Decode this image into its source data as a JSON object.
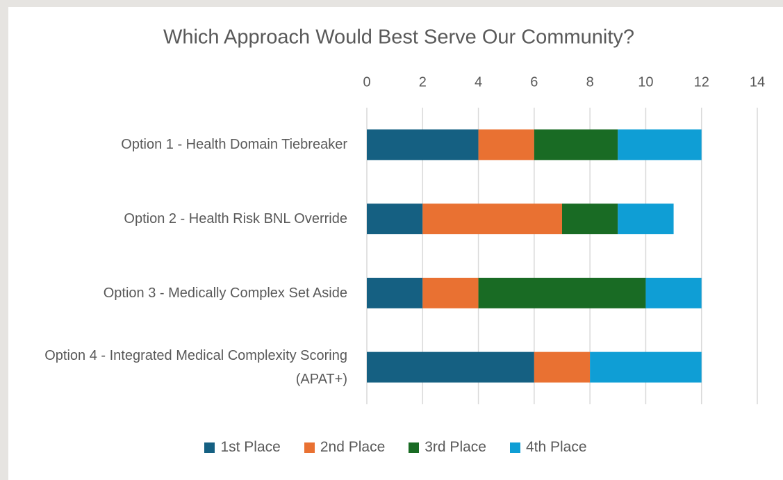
{
  "chart_data": {
    "type": "stacked_bar_horizontal",
    "title": "Which Approach Would Best Serve Our Community?",
    "categories": [
      "Option 1 - Health Domain Tiebreaker",
      "Option 2 - Health Risk BNL Override",
      "Option 3 - Medically Complex Set Aside",
      "Option 4 - Integrated Medical Complexity Scoring (APAT+)"
    ],
    "series": [
      {
        "name": "1st Place",
        "color": "#156082",
        "values": [
          4,
          2,
          2,
          6
        ]
      },
      {
        "name": "2nd Place",
        "color": "#e97132",
        "values": [
          2,
          5,
          2,
          2
        ]
      },
      {
        "name": "3rd Place",
        "color": "#196b24",
        "values": [
          3,
          2,
          6,
          0
        ]
      },
      {
        "name": "4th Place",
        "color": "#0f9ed5",
        "values": [
          3,
          2,
          2,
          4
        ]
      }
    ],
    "xlim": [
      0,
      14
    ],
    "xticks": [
      0,
      2,
      4,
      6,
      8,
      10,
      12,
      14
    ],
    "grid": true,
    "legend": "bottom"
  }
}
